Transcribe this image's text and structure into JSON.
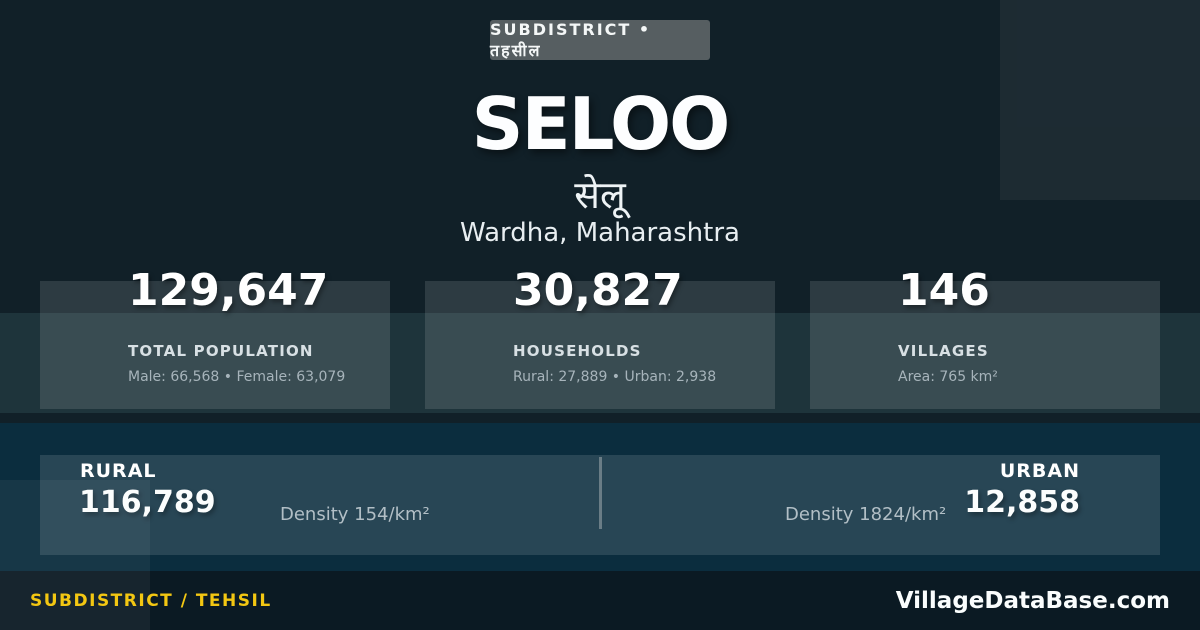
{
  "badge": {
    "label": "SUBDISTRICT • तहसील"
  },
  "header": {
    "title": "SELOO",
    "title_native": "सेलू",
    "location": "Wardha, Maharashtra"
  },
  "stats": [
    {
      "value": "129,647",
      "label": "TOTAL POPULATION",
      "detail": "Male: 66,568 • Female: 63,079"
    },
    {
      "value": "30,827",
      "label": "HOUSEHOLDS",
      "detail": "Rural: 27,889 • Urban: 2,938"
    },
    {
      "value": "146",
      "label": "VILLAGES",
      "detail": "Area: 765 km²"
    }
  ],
  "split_section": {
    "rural": {
      "label": "RURAL",
      "value": "116,789",
      "density": "Density 154/km²"
    },
    "urban": {
      "label": "URBAN",
      "value": "12,858",
      "density": "Density 1824/km²"
    }
  },
  "footer": {
    "type_label": "SUBDISTRICT / TEHSIL",
    "site": "VillageDataBase.com"
  },
  "colors": {
    "background": "#112028",
    "mid_band": "#20343e",
    "bottom_band": "#0b2d3e",
    "badge_bg": "#565e61",
    "accent_yellow": "#f3c712",
    "text_primary": "#ffffff",
    "text_muted": "#a7b4bb"
  }
}
